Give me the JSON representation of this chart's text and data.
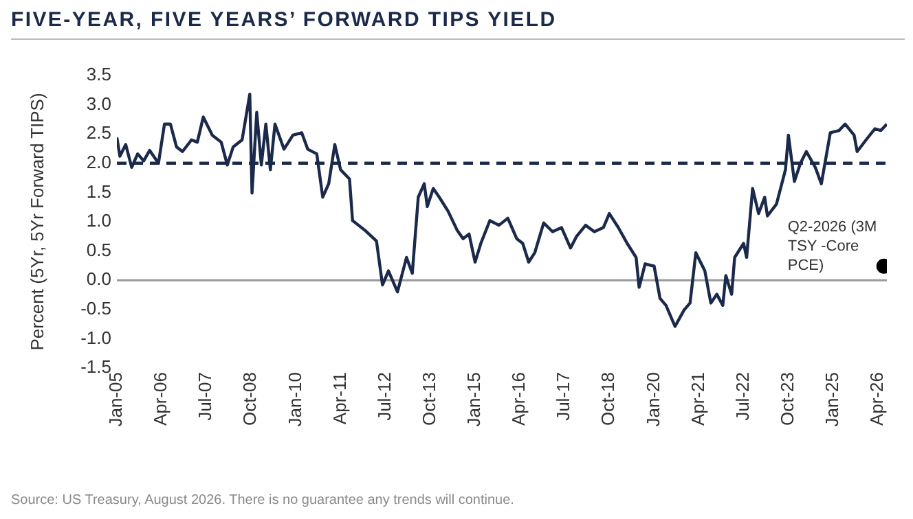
{
  "chart_data": {
    "type": "line",
    "title": "FIVE-YEAR, FIVE YEARS’ FORWARD TIPS YIELD",
    "ylabel": "Percent (5Yr, 5Yr Forward TIPS)",
    "xlim": [
      "2005-01",
      "2026-07"
    ],
    "xticks": [
      {
        "value": "2005-01",
        "label": "Jan-05"
      },
      {
        "value": "2006-04",
        "label": "Apr-06"
      },
      {
        "value": "2007-07",
        "label": "Jul-07"
      },
      {
        "value": "2008-10",
        "label": "Oct-08"
      },
      {
        "value": "2010-01",
        "label": "Jan-10"
      },
      {
        "value": "2011-04",
        "label": "Apr-11"
      },
      {
        "value": "2012-07",
        "label": "Jul-12"
      },
      {
        "value": "2013-10",
        "label": "Oct-13"
      },
      {
        "value": "2015-01",
        "label": "Jan-15"
      },
      {
        "value": "2016-04",
        "label": "Apr-16"
      },
      {
        "value": "2017-07",
        "label": "Jul-17"
      },
      {
        "value": "2018-10",
        "label": "Oct-18"
      },
      {
        "value": "2020-01",
        "label": "Jan-20"
      },
      {
        "value": "2021-04",
        "label": "Apr-21"
      },
      {
        "value": "2022-07",
        "label": "Jul-22"
      },
      {
        "value": "2023-10",
        "label": "Oct-23"
      },
      {
        "value": "2025-01",
        "label": "Jan-25"
      },
      {
        "value": "2026-04",
        "label": "Apr-26"
      }
    ],
    "ylim": [
      -1.5,
      3.5
    ],
    "yticks": [
      {
        "value": -1.5,
        "label": "-1.5"
      },
      {
        "value": -1,
        "label": "-1.0"
      },
      {
        "value": -0.5,
        "label": "-0.5"
      },
      {
        "value": 0,
        "label": "0.0"
      },
      {
        "value": 0.5,
        "label": "0.5"
      },
      {
        "value": 1,
        "label": "1.0"
      },
      {
        "value": 1.5,
        "label": "1.5"
      },
      {
        "value": 2,
        "label": "2.0"
      },
      {
        "value": 2.5,
        "label": "2.5"
      },
      {
        "value": 3,
        "label": "3.0"
      },
      {
        "value": 3.5,
        "label": "3.5"
      }
    ],
    "ref_lines": [
      {
        "axis": "y",
        "value": 0,
        "color": "#999999",
        "line_style": "solid"
      },
      {
        "axis": "y",
        "value": 2,
        "color": "#1b2a4a",
        "line_style": "dashed"
      }
    ],
    "series": [
      {
        "color": "#1b2a4a",
        "x": [
          "2005-01",
          "2005-02",
          "2005-04",
          "2005-06",
          "2005-08",
          "2005-10",
          "2005-12",
          "2006-03",
          "2006-05",
          "2006-07",
          "2006-09",
          "2006-11",
          "2007-02",
          "2007-04",
          "2007-06",
          "2007-09",
          "2007-12",
          "2008-02",
          "2008-04",
          "2008-07",
          "2008-09-17",
          "2008-10-10",
          "2008-11-27",
          "2009-01-13",
          "2009-02-28",
          "2009-04-15",
          "2009-06",
          "2009-09",
          "2009-12",
          "2010-03",
          "2010-05",
          "2010-08",
          "2010-10",
          "2010-12",
          "2011-02",
          "2011-04",
          "2011-07",
          "2011-08",
          "2011-10",
          "2011-12",
          "2012-04",
          "2012-06",
          "2012-08",
          "2012-11",
          "2013-02",
          "2013-04",
          "2013-06",
          "2013-08",
          "2013-09",
          "2013-11",
          "2014-01",
          "2014-04",
          "2014-07",
          "2014-09",
          "2014-11",
          "2015-01",
          "2015-03",
          "2015-06",
          "2015-09",
          "2015-12",
          "2016-03",
          "2016-05",
          "2016-07",
          "2016-09",
          "2016-12",
          "2017-03",
          "2017-06",
          "2017-09",
          "2017-11",
          "2018-02",
          "2018-05",
          "2018-08",
          "2018-10",
          "2019-01",
          "2019-04",
          "2019-07",
          "2019-08",
          "2019-10",
          "2020-01",
          "2020-03",
          "2020-05",
          "2020-08",
          "2020-11",
          "2021-01",
          "2021-03",
          "2021-06",
          "2021-08",
          "2021-10",
          "2021-12",
          "2022-01",
          "2022-03",
          "2022-04",
          "2022-07",
          "2022-08",
          "2022-10",
          "2022-12",
          "2023-02",
          "2023-03",
          "2023-06",
          "2023-09",
          "2023-10",
          "2023-12",
          "2024-02",
          "2024-04",
          "2024-07",
          "2024-09",
          "2024-12",
          "2025-03",
          "2025-05",
          "2025-08",
          "2025-09",
          "2025-12",
          "2026-03",
          "2026-05",
          "2026-07"
        ],
        "values": [
          2.44,
          2.12,
          2.32,
          1.93,
          2.16,
          2.04,
          2.22,
          2.0,
          2.67,
          2.67,
          2.28,
          2.2,
          2.4,
          2.36,
          2.79,
          2.48,
          2.36,
          1.97,
          2.28,
          2.4,
          3.18,
          1.49,
          2.87,
          1.97,
          2.67,
          1.89,
          2.67,
          2.24,
          2.48,
          2.52,
          2.24,
          2.16,
          1.42,
          1.65,
          2.32,
          1.89,
          1.73,
          1.02,
          0.94,
          0.86,
          0.67,
          -0.08,
          0.16,
          -0.2,
          0.39,
          0.12,
          1.42,
          1.65,
          1.26,
          1.57,
          1.42,
          1.18,
          0.86,
          0.71,
          0.79,
          0.31,
          0.63,
          1.02,
          0.94,
          1.06,
          0.71,
          0.63,
          0.31,
          0.47,
          0.98,
          0.83,
          0.9,
          0.55,
          0.75,
          0.94,
          0.83,
          0.9,
          1.14,
          0.9,
          0.63,
          0.39,
          -0.12,
          0.28,
          0.24,
          -0.31,
          -0.43,
          -0.79,
          -0.51,
          -0.39,
          0.47,
          0.16,
          -0.39,
          -0.24,
          -0.43,
          0.08,
          -0.24,
          0.39,
          0.63,
          0.39,
          1.57,
          1.14,
          1.42,
          1.1,
          1.3,
          1.89,
          2.48,
          1.69,
          2.0,
          2.2,
          1.93,
          1.65,
          2.52,
          2.56,
          2.67,
          2.48,
          2.2,
          2.4,
          2.59,
          2.56,
          2.67
        ]
      },
      {
        "type": "scatter",
        "name": "Q2-2026 (3M TSY -Core PCE)",
        "color": "#000000",
        "marker": "circle",
        "x": [
          "2026-06"
        ],
        "values": [
          0.24
        ]
      }
    ],
    "annotations": [
      "Source: US Treasury, August 2026. There is no guarantee any trends will continue."
    ]
  }
}
